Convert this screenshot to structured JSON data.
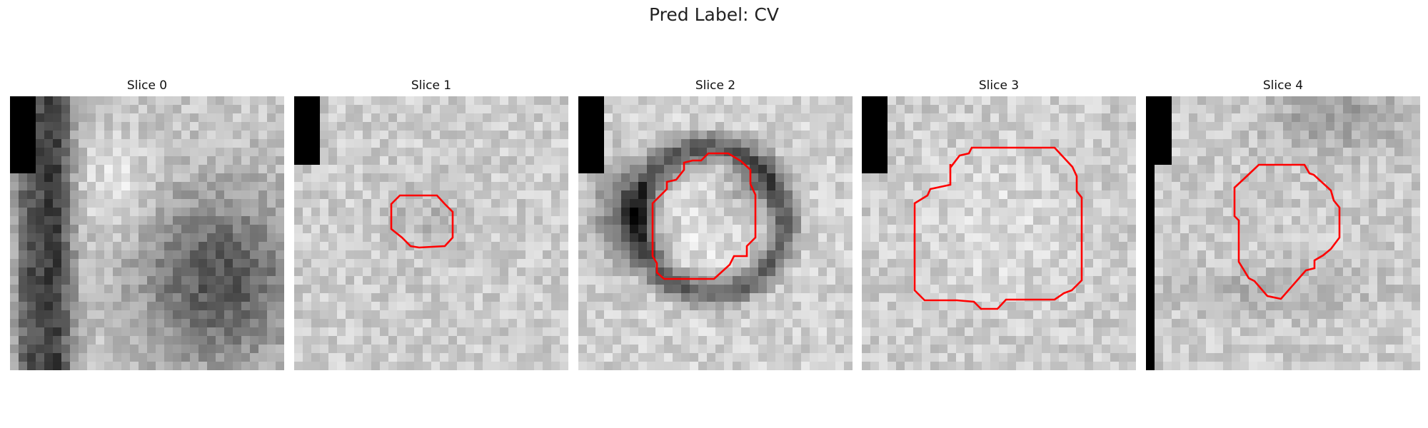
{
  "figure": {
    "title": "Pred Label: CV"
  },
  "contour_color": "#ff0000",
  "slices": [
    {
      "title": "Slice 0",
      "has_contour": false
    },
    {
      "title": "Slice 1",
      "has_contour": true
    },
    {
      "title": "Slice 2",
      "has_contour": true
    },
    {
      "title": "Slice 3",
      "has_contour": true
    },
    {
      "title": "Slice 4",
      "has_contour": true
    }
  ]
}
